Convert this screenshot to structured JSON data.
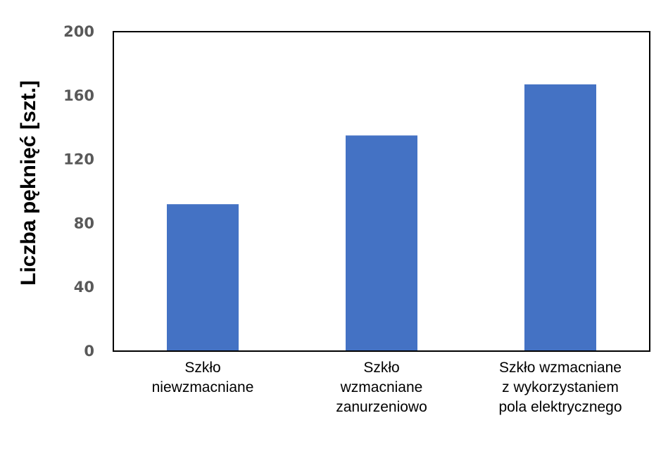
{
  "chart_data": {
    "type": "bar",
    "categories": [
      [
        "Szkło",
        "niewzmacniane"
      ],
      [
        "Szkło",
        "wzmacniane",
        "zanurzeniowo"
      ],
      [
        "Szkło wzmacniane",
        "z wykorzystaniem",
        "pola elektrycznego"
      ]
    ],
    "values": [
      92,
      135,
      167
    ],
    "title": "",
    "xlabel": "",
    "ylabel": "Liczba pęknięć [szt.]",
    "ylim": [
      0,
      200
    ],
    "yticks": [
      "0",
      "40",
      "80",
      "120",
      "160",
      "200"
    ],
    "grid": false,
    "legend": "none"
  },
  "colors": {
    "bar": "#4472C4",
    "axis": "#000000",
    "tick_text": "#595959"
  }
}
